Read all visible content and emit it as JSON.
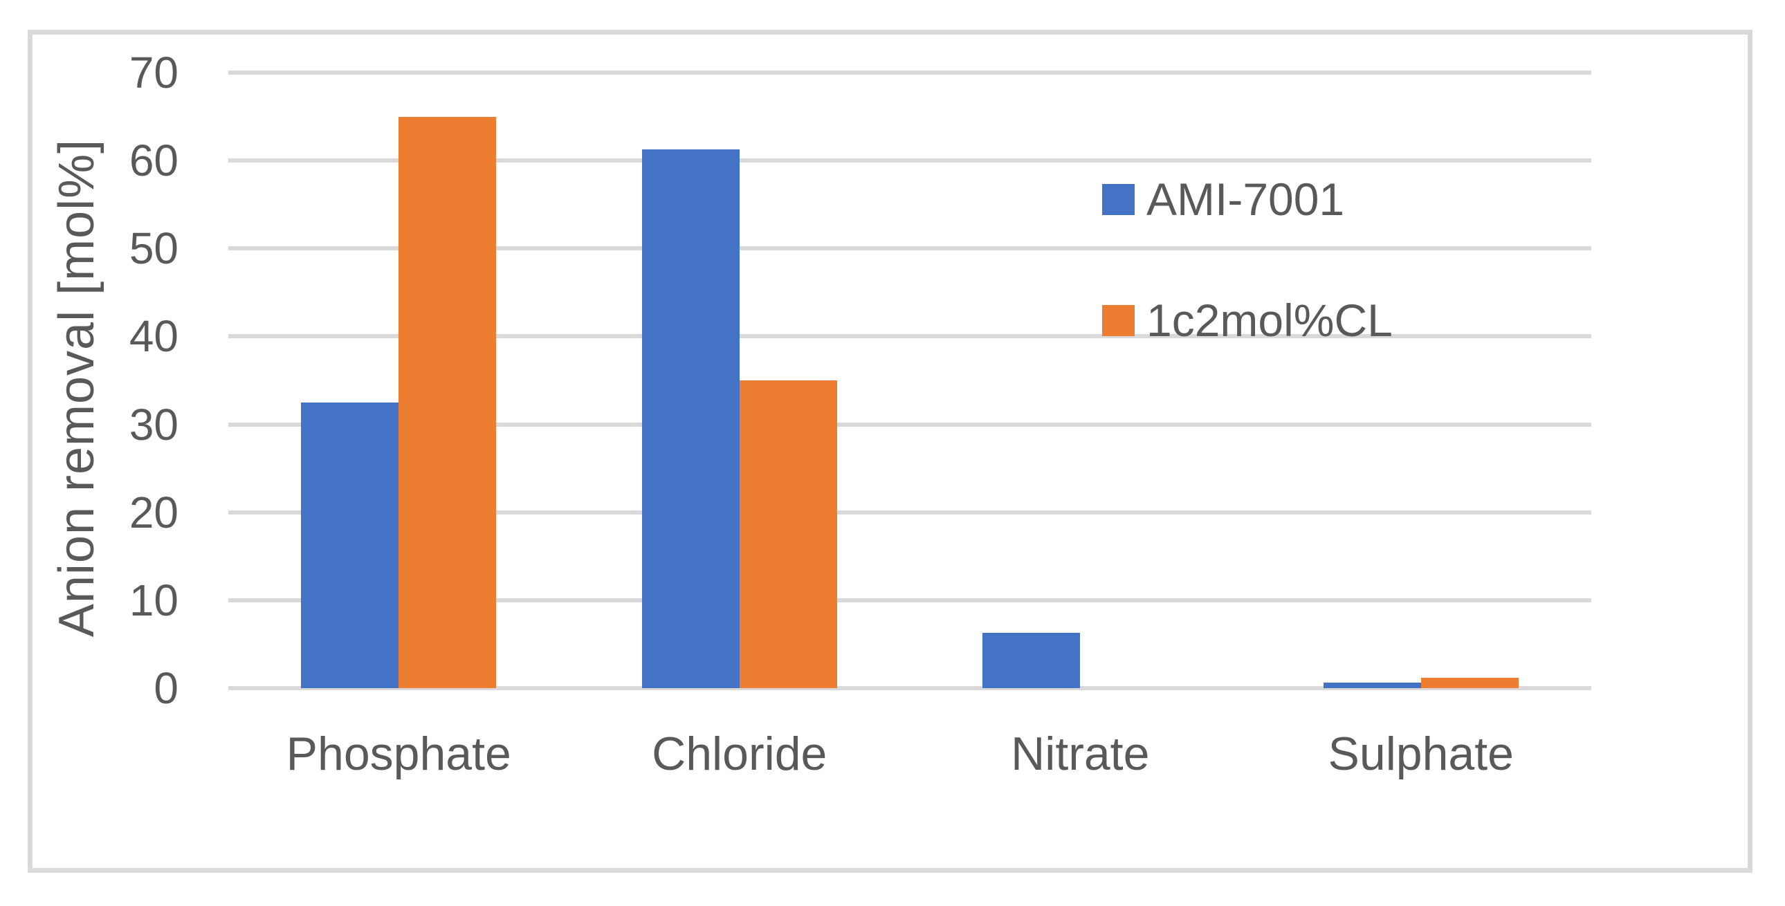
{
  "chart_data": {
    "type": "bar",
    "title": "",
    "categories": [
      "Phosphate",
      "Chloride",
      "Nitrate",
      "Sulphate"
    ],
    "series": [
      {
        "name": "AMI-7001",
        "color": "#4472C4",
        "values": [
          32.5,
          61.3,
          6.3,
          0.6
        ]
      },
      {
        "name": "1c2mol%CL",
        "color": "#ED7D31",
        "values": [
          65.0,
          35.0,
          0.0,
          1.2
        ]
      }
    ],
    "xlabel": "",
    "ylabel": "Anion removal [mol%]",
    "ylim": [
      0,
      70
    ],
    "yticks": [
      0,
      10,
      20,
      30,
      40,
      50,
      60,
      70
    ],
    "grid": true,
    "legend_position": "right-inside"
  },
  "colors": {
    "background": "#FFFFFF",
    "frame_border": "#D9D9D9",
    "gridline": "#D9D9D9",
    "axis_text": "#595959"
  }
}
